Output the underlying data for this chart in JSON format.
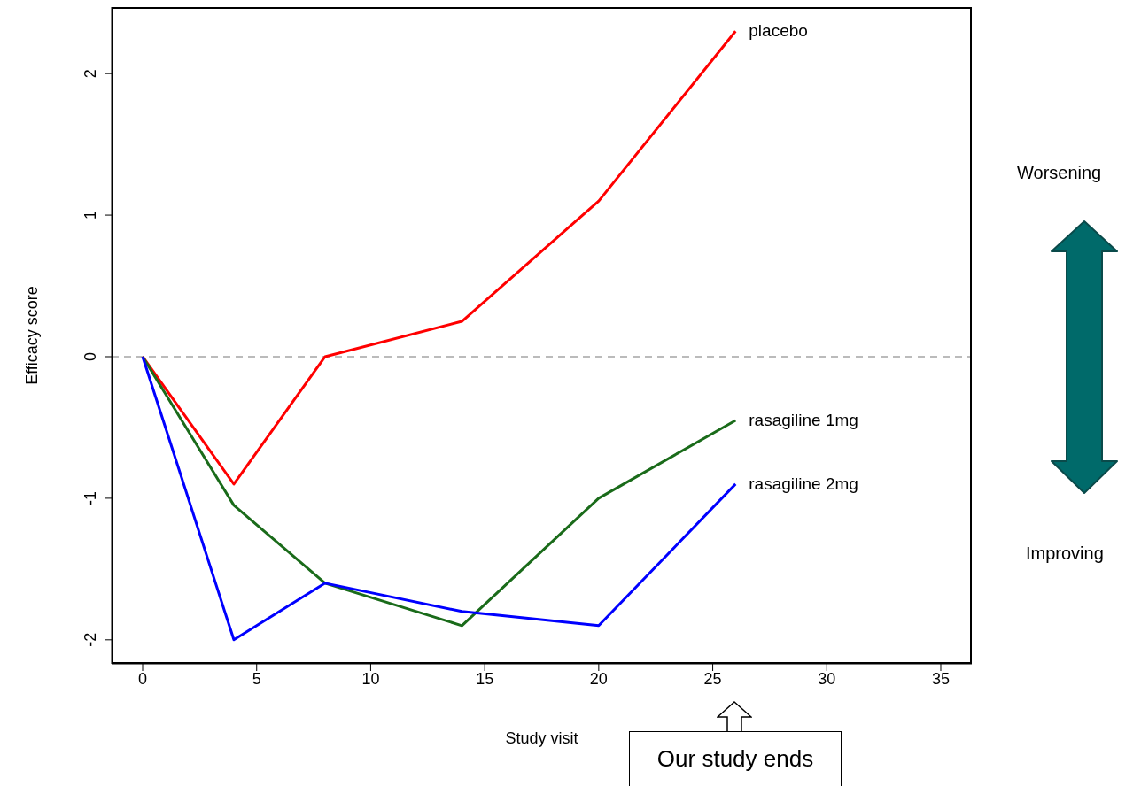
{
  "chart_data": {
    "type": "line",
    "xlabel": "Study visit",
    "ylabel": "Efficacy score",
    "x": [
      0,
      4,
      8,
      14,
      20,
      26
    ],
    "series": [
      {
        "name": "placebo",
        "color": "#ff0000",
        "values": [
          0,
          -0.9,
          0,
          0.25,
          1.1,
          2.3
        ]
      },
      {
        "name": "rasagiline 1mg",
        "color": "#1a6b1a",
        "values": [
          0,
          -1.05,
          -1.6,
          -1.9,
          -1.0,
          -0.45
        ]
      },
      {
        "name": "rasagiline 2mg",
        "color": "#0000ff",
        "values": [
          0,
          -2.0,
          -1.6,
          -1.8,
          -1.9,
          -0.9
        ]
      }
    ],
    "xlim": [
      -1.36,
      36.36
    ],
    "xticks": [
      0,
      5,
      10,
      15,
      20,
      25,
      30,
      35
    ],
    "ylim": [
      -2.17,
      2.47
    ],
    "yticks": [
      -2,
      -1,
      0,
      1,
      2
    ],
    "ref_lines": [
      {
        "axis": "y",
        "value": 0,
        "color": "#bbbbbb",
        "line_style": "dashed"
      }
    ],
    "grid": false,
    "legend": false,
    "marker": "none",
    "line_style": "solid",
    "annotations": [
      "Worsening",
      "Improving",
      "Our study ends"
    ]
  }
}
